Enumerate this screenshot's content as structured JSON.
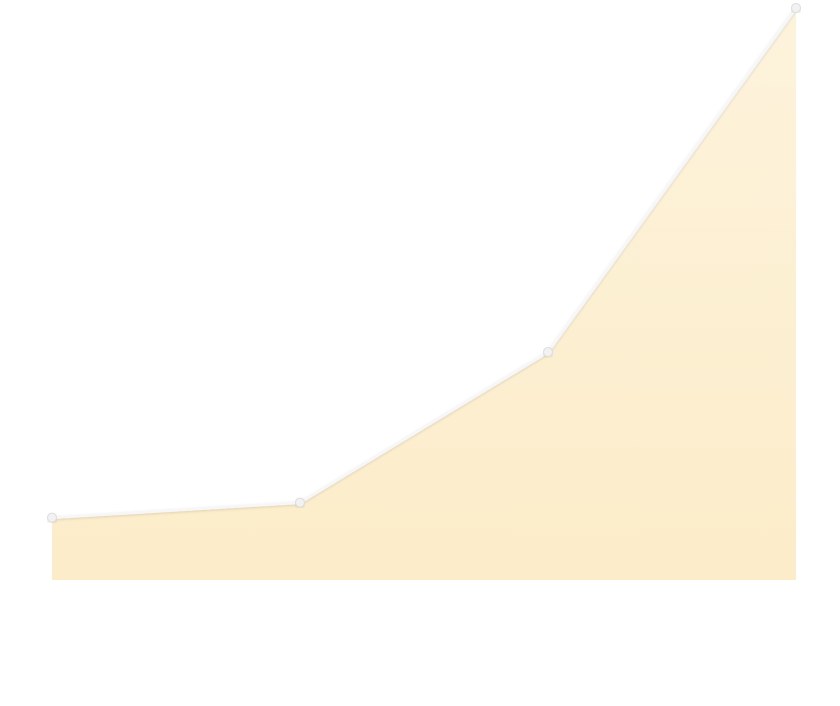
{
  "chart_data": {
    "type": "area",
    "x": [
      1,
      2,
      3,
      4
    ],
    "series": [
      {
        "values": [
          0.3,
          1.0,
          8.0,
          24.0
        ]
      }
    ],
    "ylim": [
      -2.6,
      24.0
    ],
    "grid": false,
    "legend": "none",
    "colors": {
      "fill_top": "#fdf3dc",
      "fill_bottom": "#fcecc9",
      "line": "#f7f7f7",
      "marker": "#f2f2f2",
      "marker_stroke": "#dddddd",
      "background": "#ffffff"
    }
  }
}
